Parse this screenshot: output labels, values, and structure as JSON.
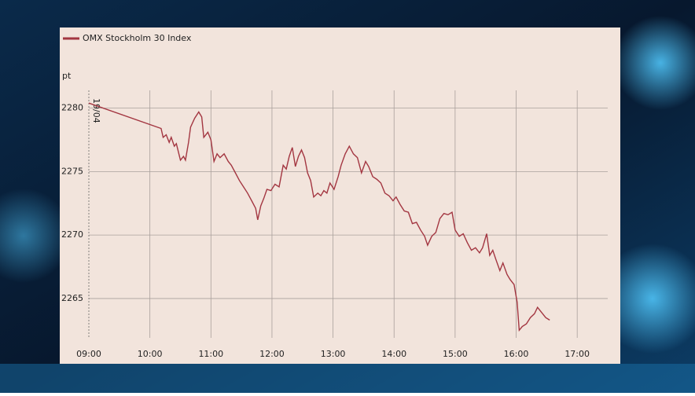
{
  "chart_data": {
    "type": "line",
    "series": [
      {
        "name": "OMX Stockholm 30 Index",
        "color": "#a33641",
        "values": [
          2280.4,
          2278.4,
          2277.7,
          2277.9,
          2277.3,
          2277.7,
          2277.0,
          2277.2,
          2275.9,
          2276.2,
          2275.9,
          2277.3,
          2278.5,
          2279.2,
          2279.7,
          2279.3,
          2277.7,
          2278.1,
          2277.5,
          2275.8,
          2276.4,
          2276.1,
          2276.4,
          2275.8,
          2275.5,
          2274.9,
          2274.3,
          2273.8,
          2273.3,
          2272.7,
          2272.1,
          2271.2,
          2272.3,
          2272.9,
          2273.6,
          2273.5,
          2274.0,
          2273.8,
          2275.5,
          2275.2,
          2276.2,
          2276.9,
          2275.4,
          2276.2,
          2276.7,
          2276.1,
          2274.9,
          2274.3,
          2273.0,
          2273.3,
          2273.1,
          2273.5,
          2273.3,
          2274.1,
          2273.6,
          2274.6,
          2275.5,
          2276.4,
          2277.0,
          2276.4,
          2276.1,
          2274.9,
          2275.8,
          2275.4,
          2274.6,
          2274.4,
          2274.1,
          2273.3,
          2273.1,
          2272.7,
          2273.0,
          2272.4,
          2271.9,
          2271.8,
          2270.9,
          2271.0,
          2270.4,
          2269.9,
          2269.2,
          2269.9,
          2270.2,
          2271.3,
          2271.7,
          2271.6,
          2271.8,
          2270.4,
          2269.9,
          2270.1,
          2269.4,
          2268.8,
          2269.0,
          2268.6,
          2269.0,
          2270.1,
          2268.4,
          2268.8,
          2268.1,
          2267.2,
          2267.8,
          2266.9,
          2266.5,
          2266.1,
          2264.7,
          2262.5,
          2262.8,
          2263.0,
          2263.5,
          2263.8,
          2264.3,
          2263.9,
          2263.5,
          2263.3
        ]
      }
    ],
    "x": [
      "09:00",
      "10:11",
      "10:13",
      "10:16",
      "10:19",
      "10:21",
      "10:24",
      "10:26",
      "10:30",
      "10:33",
      "10:35",
      "10:38",
      "10:40",
      "10:44",
      "10:48",
      "10:51",
      "10:53",
      "10:57",
      "11:00",
      "11:03",
      "11:06",
      "11:09",
      "11:13",
      "11:17",
      "11:20",
      "11:24",
      "11:28",
      "11:32",
      "11:36",
      "11:40",
      "11:44",
      "11:46",
      "11:49",
      "11:52",
      "11:55",
      "11:59",
      "12:03",
      "12:07",
      "12:11",
      "12:14",
      "12:17",
      "12:20",
      "12:23",
      "12:26",
      "12:29",
      "12:32",
      "12:35",
      "12:38",
      "12:41",
      "12:45",
      "12:48",
      "12:51",
      "12:54",
      "12:57",
      "13:01",
      "13:05",
      "13:08",
      "13:12",
      "13:16",
      "13:20",
      "13:24",
      "13:28",
      "13:32",
      "13:35",
      "13:39",
      "13:43",
      "13:47",
      "13:51",
      "13:55",
      "13:59",
      "14:02",
      "14:06",
      "14:10",
      "14:14",
      "14:18",
      "14:22",
      "14:26",
      "14:30",
      "14:33",
      "14:37",
      "14:41",
      "14:45",
      "14:49",
      "14:53",
      "14:57",
      "15:00",
      "15:04",
      "15:08",
      "15:12",
      "15:16",
      "15:20",
      "15:24",
      "15:27",
      "15:31",
      "15:34",
      "15:37",
      "15:40",
      "15:44",
      "15:47",
      "15:51",
      "15:54",
      "15:58",
      "16:01",
      "16:03",
      "16:06",
      "16:10",
      "16:14",
      "16:18",
      "16:21",
      "16:25",
      "16:29",
      "16:33"
    ],
    "xlim": [
      "09:00",
      "17:30"
    ],
    "xticks": [
      "09:00",
      "10:00",
      "11:00",
      "12:00",
      "13:00",
      "14:00",
      "15:00",
      "16:00",
      "17:00"
    ],
    "ylim": [
      2261.9,
      2281.4
    ],
    "yticks": [
      2265,
      2270,
      2275,
      2280
    ],
    "y_unit": "pt",
    "annotation": "19/04",
    "grid": true,
    "legend_position": "top-left"
  }
}
